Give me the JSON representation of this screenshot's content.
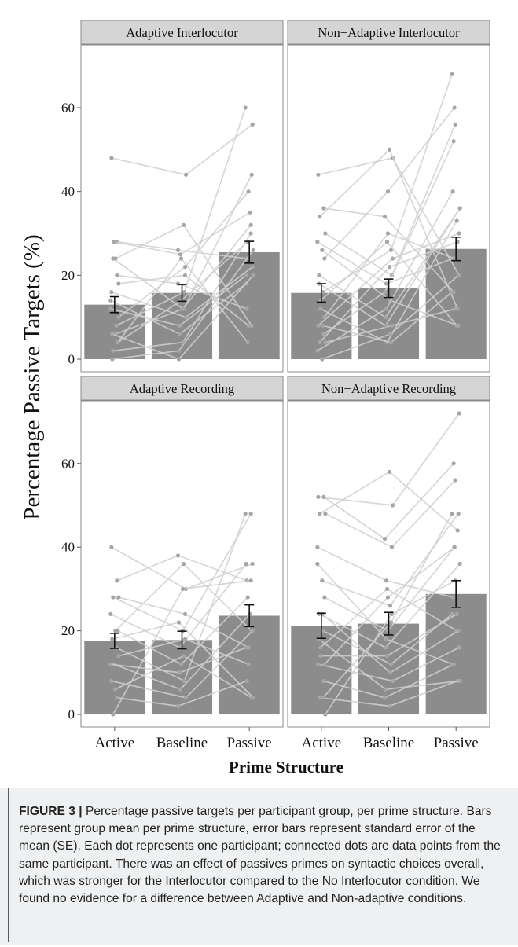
{
  "chart_data": {
    "type": "bar",
    "ylabel": "Percentage Passive Targets (%)",
    "xlabel": "Prime Structure",
    "categories": [
      "Active",
      "Baseline",
      "Passive"
    ],
    "yticks": [
      0,
      20,
      40,
      60
    ],
    "ylim": [
      -3,
      75
    ],
    "colors": {
      "bar": "#8c8c8c",
      "point": "#a6a6a6",
      "line": "#d0d0d0",
      "errorbar": "#111111",
      "strip": "#d5d5d5"
    },
    "panels": [
      {
        "title": "Adaptive Interlocutor",
        "means": [
          13.0,
          15.8,
          25.5
        ],
        "se": [
          1.9,
          2.0,
          2.6
        ],
        "participants": [
          [
            48,
            44,
            56
          ],
          [
            28,
            26,
            24
          ],
          [
            24,
            12,
            32
          ],
          [
            18,
            20,
            8
          ],
          [
            12,
            8,
            20
          ],
          [
            6,
            12,
            44
          ],
          [
            4,
            24,
            4
          ],
          [
            0,
            2,
            26
          ],
          [
            8,
            16,
            60
          ],
          [
            28,
            25,
            35
          ],
          [
            16,
            10,
            22
          ],
          [
            20,
            18,
            12
          ],
          [
            2,
            4,
            30
          ],
          [
            10,
            22,
            40
          ],
          [
            14,
            6,
            18
          ],
          [
            24,
            32,
            8
          ],
          [
            4,
            14,
            28
          ],
          [
            6,
            0,
            20
          ]
        ]
      },
      {
        "title": "Non−Adaptive Interlocutor",
        "means": [
          15.8,
          16.9,
          26.3
        ],
        "se": [
          2.2,
          2.2,
          2.8
        ],
        "participants": [
          [
            44,
            48,
            20
          ],
          [
            36,
            34,
            16
          ],
          [
            34,
            50,
            12
          ],
          [
            30,
            20,
            56
          ],
          [
            28,
            18,
            24
          ],
          [
            26,
            14,
            8
          ],
          [
            24,
            40,
            60
          ],
          [
            20,
            10,
            36
          ],
          [
            16,
            26,
            68
          ],
          [
            12,
            4,
            33
          ],
          [
            8,
            24,
            30
          ],
          [
            6,
            16,
            52
          ],
          [
            4,
            22,
            28
          ],
          [
            4,
            8,
            12
          ],
          [
            2,
            12,
            40
          ],
          [
            0,
            6,
            20
          ],
          [
            10,
            30,
            24
          ],
          [
            18,
            8,
            36
          ],
          [
            8,
            4,
            16
          ],
          [
            14,
            28,
            8
          ]
        ]
      },
      {
        "title": "Adaptive Recording",
        "means": [
          17.6,
          17.8,
          23.6
        ],
        "se": [
          1.8,
          2.1,
          2.6
        ],
        "participants": [
          [
            40,
            30,
            36
          ],
          [
            32,
            38,
            32
          ],
          [
            28,
            20,
            48
          ],
          [
            28,
            24,
            16
          ],
          [
            24,
            16,
            36
          ],
          [
            20,
            36,
            20
          ],
          [
            20,
            12,
            28
          ],
          [
            18,
            22,
            4
          ],
          [
            16,
            8,
            48
          ],
          [
            12,
            6,
            24
          ],
          [
            8,
            4,
            20
          ],
          [
            4,
            2,
            8
          ],
          [
            0,
            30,
            32
          ],
          [
            14,
            18,
            12
          ],
          [
            12,
            10,
            16
          ],
          [
            6,
            14,
            4
          ]
        ]
      },
      {
        "title": "Non−Adaptive Recording",
        "means": [
          21.2,
          21.7,
          28.8
        ],
        "se": [
          3.0,
          2.7,
          3.2
        ],
        "participants": [
          [
            52,
            50,
            72
          ],
          [
            52,
            42,
            60
          ],
          [
            48,
            58,
            44
          ],
          [
            48,
            40,
            56
          ],
          [
            40,
            32,
            28
          ],
          [
            32,
            26,
            48
          ],
          [
            28,
            20,
            40
          ],
          [
            24,
            16,
            36
          ],
          [
            20,
            12,
            24
          ],
          [
            16,
            30,
            20
          ],
          [
            12,
            8,
            16
          ],
          [
            8,
            4,
            12
          ],
          [
            4,
            2,
            8
          ],
          [
            0,
            24,
            32
          ],
          [
            36,
            18,
            12
          ],
          [
            24,
            10,
            20
          ],
          [
            12,
            28,
            40
          ],
          [
            18,
            6,
            8
          ],
          [
            4,
            22,
            48
          ],
          [
            14,
            14,
            24
          ]
        ]
      }
    ]
  },
  "caption": {
    "label": "FIGURE 3 |",
    "text": " Percentage passive targets per participant group, per prime structure. Bars represent group mean per prime structure, error bars represent standard error of the mean (SE). Each dot represents one participant; connected dots are data points from the same participant. There was an effect of passives primes on syntactic choices overall, which was stronger for the Interlocutor compared to the No Interlocutor condition. We found no evidence for a difference between Adaptive and Non-adaptive conditions."
  }
}
